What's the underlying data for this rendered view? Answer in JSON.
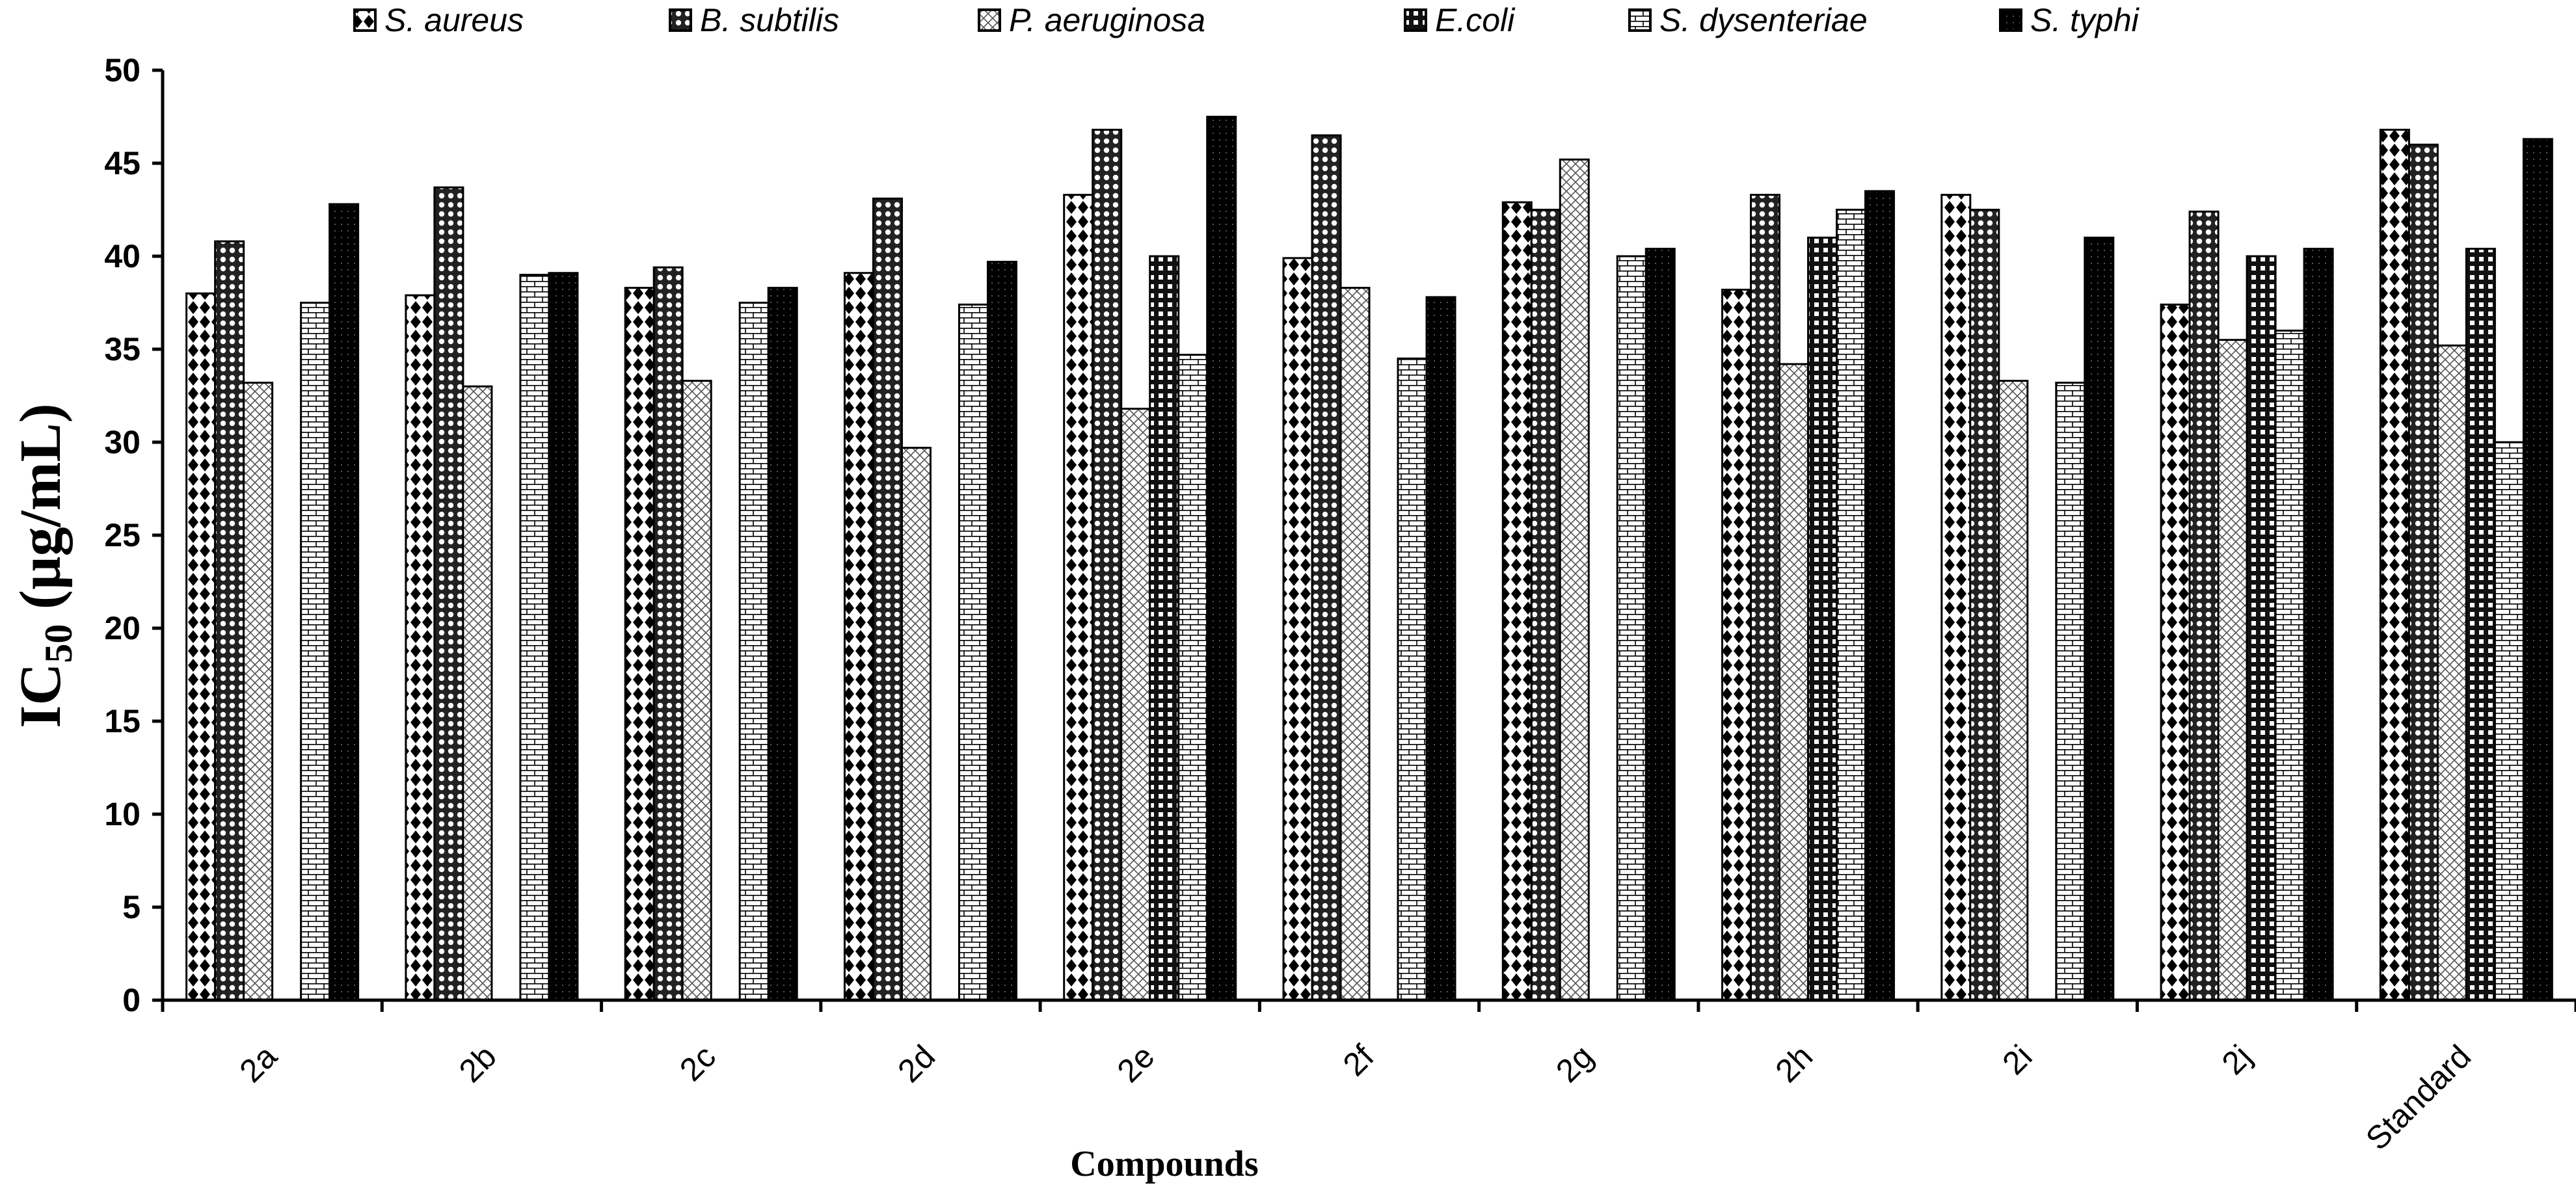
{
  "chart_data": {
    "type": "bar",
    "title": "",
    "xlabel": "Compounds",
    "ylabel": "IC50 (µg/mL)",
    "ylabel_parts": {
      "main": "IC",
      "sub": "50",
      "rest": " (µg/mL)"
    },
    "ylim": [
      0,
      50
    ],
    "yticks": [
      0,
      5,
      10,
      15,
      20,
      25,
      30,
      35,
      40,
      45,
      50
    ],
    "legend_position": "top",
    "categories": [
      "2a",
      "2b",
      "2c",
      "2d",
      "2e",
      "2f",
      "2g",
      "2h",
      "2i",
      "2j",
      "Standard"
    ],
    "series": [
      {
        "name": "S.  aureus",
        "pattern": "diamond",
        "values": [
          38.0,
          37.9,
          38.3,
          39.1,
          43.3,
          39.9,
          42.9,
          38.2,
          43.3,
          37.4,
          46.8
        ]
      },
      {
        "name": "B. subtilis",
        "pattern": "circles",
        "values": [
          40.8,
          43.7,
          39.4,
          43.1,
          46.8,
          46.5,
          42.5,
          43.3,
          42.5,
          42.4,
          46.0
        ]
      },
      {
        "name": "P. aeruginosa",
        "pattern": "crosshatch",
        "values": [
          33.2,
          33.0,
          33.3,
          29.7,
          31.8,
          38.3,
          45.2,
          34.2,
          33.3,
          35.5,
          35.2
        ]
      },
      {
        "name": "E.coli",
        "pattern": "dotgrid",
        "values": [
          0,
          0,
          0,
          0,
          40.0,
          0,
          0,
          41.0,
          0,
          40.0,
          40.4
        ]
      },
      {
        "name": "S. dysenteriae",
        "pattern": "brick",
        "values": [
          37.5,
          39.0,
          37.5,
          37.4,
          34.7,
          34.5,
          40.0,
          42.5,
          33.2,
          36.0,
          30.0
        ]
      },
      {
        "name": "S.  typhi",
        "pattern": "dark",
        "values": [
          42.8,
          39.1,
          38.3,
          39.7,
          47.5,
          37.8,
          40.4,
          43.5,
          41.0,
          40.4,
          46.3
        ]
      }
    ]
  }
}
